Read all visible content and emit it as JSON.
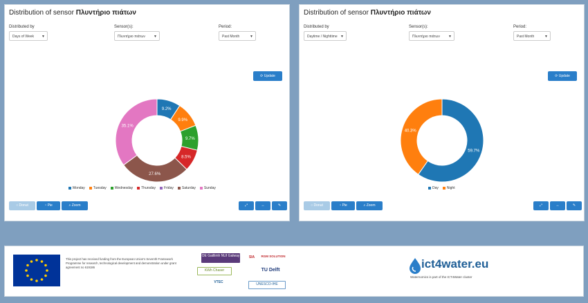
{
  "left": {
    "title_prefix": "Distribution of sensor",
    "title_sensor": "Πλυντήριο πιάτων",
    "distributed_by_label": "Distributed by",
    "distributed_by_value": "Days of Week",
    "sensors_label": "Sensor(s):",
    "sensors_value": "Πλυντήριο πιάτων",
    "period_label": "Period:",
    "period_value": "Past Month",
    "update_label": "Update",
    "buttons": {
      "donut": "Donut",
      "pie": "Pie",
      "zoom": "Zoom"
    }
  },
  "right": {
    "title_prefix": "Distribution of sensor",
    "title_sensor": "Πλυντήριο πιάτων",
    "distributed_by_label": "Distributed by",
    "distributed_by_value": "Daytime / Nighttime",
    "sensors_label": "Sensor(s):",
    "sensors_value": "Πλυντήριο πιάτων",
    "period_label": "Period:",
    "period_value": "Past Month",
    "update_label": "Update",
    "buttons": {
      "donut": "Donut",
      "pie": "Pie",
      "zoom": "Zoom"
    }
  },
  "chart_data": [
    {
      "type": "pie",
      "style": "donut",
      "categories": [
        "Monday",
        "Tuesday",
        "Wednesday",
        "Thursday",
        "Friday",
        "Saturday",
        "Sunday"
      ],
      "values": [
        9.2,
        9.9,
        9.7,
        8.5,
        0,
        27.6,
        35.1
      ],
      "labels": [
        "9.2%",
        "9.9%",
        "9.7%",
        "8.5%",
        "",
        "27.6%",
        "35.1%"
      ],
      "colors": [
        "#1f77b4",
        "#ff7f0e",
        "#2ca02c",
        "#d62728",
        "#9467bd",
        "#8c564b",
        "#e377c2"
      ],
      "legend": "bottom"
    },
    {
      "type": "pie",
      "style": "donut",
      "categories": [
        "Day",
        "Night"
      ],
      "values": [
        59.7,
        40.3
      ],
      "labels": [
        "59.7%",
        "40.3%"
      ],
      "colors": [
        "#1f77b4",
        "#ff7f0e"
      ],
      "legend": "bottom"
    }
  ],
  "footer": {
    "funding_text": "This project has received funding from the European Union's Seventh Framework Programme for research, technological development and demonstration under grant agreement no 619186",
    "ict_name": "ict4water.eu",
    "ict_sub": "Waternomics is part of the ICT4Water cluster",
    "logos": [
      "OE Gaillimh NUI Galway",
      "SIA",
      "RGM SOLUTION",
      "KWh Chaser",
      "TU Delft",
      "VTEC",
      "UNESCO-IHE"
    ]
  },
  "icons": [
    "refresh-icon",
    "expand-icon",
    "more-icon",
    "settings-icon"
  ]
}
